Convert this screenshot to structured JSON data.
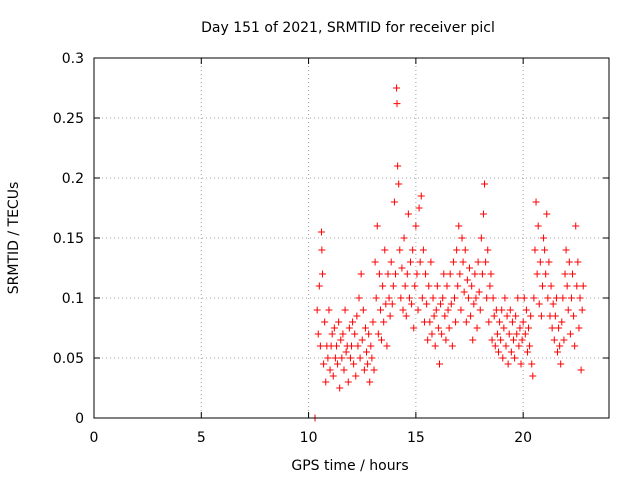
{
  "chart_data": {
    "type": "scatter",
    "title": "Day 151 of 2021, SRMTID for receiver picl",
    "xlabel": "GPS time / hours",
    "ylabel": "SRMTID / TECUs",
    "xlim": [
      0,
      24
    ],
    "ylim": [
      0,
      0.3
    ],
    "xticks": [
      0,
      5,
      10,
      15,
      20
    ],
    "xtick_labels": [
      "0",
      "5",
      "10",
      "15",
      "20"
    ],
    "yticks": [
      0,
      0.05,
      0.1,
      0.15,
      0.2,
      0.25,
      0.3
    ],
    "ytick_labels": [
      "0",
      "0.05",
      "0.1",
      "0.15",
      "0.2",
      "0.25",
      "0.3"
    ],
    "grid": true,
    "marker": "+",
    "series": [
      {
        "name": "SRMTID",
        "color": "#ff0000",
        "points": [
          [
            10.3,
            0.0
          ],
          [
            10.4,
            0.09
          ],
          [
            10.45,
            0.07
          ],
          [
            10.5,
            0.11
          ],
          [
            10.55,
            0.06
          ],
          [
            10.6,
            0.155
          ],
          [
            10.62,
            0.14
          ],
          [
            10.65,
            0.12
          ],
          [
            10.7,
            0.045
          ],
          [
            10.75,
            0.08
          ],
          [
            10.8,
            0.03
          ],
          [
            10.85,
            0.06
          ],
          [
            10.9,
            0.05
          ],
          [
            10.95,
            0.09
          ],
          [
            11.0,
            0.04
          ],
          [
            11.05,
            0.06
          ],
          [
            11.1,
            0.07
          ],
          [
            11.15,
            0.035
          ],
          [
            11.2,
            0.075
          ],
          [
            11.25,
            0.05
          ],
          [
            11.3,
            0.06
          ],
          [
            11.35,
            0.045
          ],
          [
            11.4,
            0.08
          ],
          [
            11.45,
            0.025
          ],
          [
            11.5,
            0.065
          ],
          [
            11.55,
            0.05
          ],
          [
            11.6,
            0.07
          ],
          [
            11.65,
            0.04
          ],
          [
            11.7,
            0.09
          ],
          [
            11.75,
            0.055
          ],
          [
            11.8,
            0.06
          ],
          [
            11.85,
            0.03
          ],
          [
            11.9,
            0.075
          ],
          [
            11.95,
            0.05
          ],
          [
            12.0,
            0.06
          ],
          [
            12.05,
            0.08
          ],
          [
            12.1,
            0.045
          ],
          [
            12.15,
            0.07
          ],
          [
            12.2,
            0.035
          ],
          [
            12.25,
            0.085
          ],
          [
            12.3,
            0.06
          ],
          [
            12.35,
            0.1
          ],
          [
            12.4,
            0.05
          ],
          [
            12.45,
            0.12
          ],
          [
            12.5,
            0.065
          ],
          [
            12.55,
            0.09
          ],
          [
            12.6,
            0.04
          ],
          [
            12.65,
            0.075
          ],
          [
            12.7,
            0.055
          ],
          [
            12.75,
            0.045
          ],
          [
            12.8,
            0.07
          ],
          [
            12.85,
            0.03
          ],
          [
            12.9,
            0.06
          ],
          [
            12.95,
            0.05
          ],
          [
            13.0,
            0.08
          ],
          [
            13.05,
            0.04
          ],
          [
            13.1,
            0.13
          ],
          [
            13.15,
            0.1
          ],
          [
            13.2,
            0.16
          ],
          [
            13.25,
            0.07
          ],
          [
            13.3,
            0.12
          ],
          [
            13.35,
            0.09
          ],
          [
            13.4,
            0.065
          ],
          [
            13.45,
            0.11
          ],
          [
            13.5,
            0.08
          ],
          [
            13.55,
            0.14
          ],
          [
            13.6,
            0.095
          ],
          [
            13.65,
            0.06
          ],
          [
            13.7,
            0.12
          ],
          [
            13.75,
            0.1
          ],
          [
            13.8,
            0.085
          ],
          [
            13.85,
            0.13
          ],
          [
            13.9,
            0.095
          ],
          [
            13.95,
            0.11
          ],
          [
            14.0,
            0.18
          ],
          [
            14.05,
            0.12
          ],
          [
            14.1,
            0.275
          ],
          [
            14.12,
            0.262
          ],
          [
            14.15,
            0.21
          ],
          [
            14.2,
            0.195
          ],
          [
            14.25,
            0.14
          ],
          [
            14.3,
            0.1
          ],
          [
            14.35,
            0.125
          ],
          [
            14.4,
            0.09
          ],
          [
            14.45,
            0.15
          ],
          [
            14.5,
            0.11
          ],
          [
            14.55,
            0.085
          ],
          [
            14.6,
            0.12
          ],
          [
            14.65,
            0.17
          ],
          [
            14.7,
            0.1
          ],
          [
            14.75,
            0.13
          ],
          [
            14.8,
            0.095
          ],
          [
            14.85,
            0.14
          ],
          [
            14.9,
            0.075
          ],
          [
            14.95,
            0.11
          ],
          [
            15.0,
            0.16
          ],
          [
            15.05,
            0.12
          ],
          [
            15.1,
            0.09
          ],
          [
            15.15,
            0.175
          ],
          [
            15.2,
            0.13
          ],
          [
            15.25,
            0.185
          ],
          [
            15.3,
            0.1
          ],
          [
            15.35,
            0.14
          ],
          [
            15.4,
            0.08
          ],
          [
            15.45,
            0.12
          ],
          [
            15.5,
            0.095
          ],
          [
            15.55,
            0.065
          ],
          [
            15.6,
            0.11
          ],
          [
            15.65,
            0.08
          ],
          [
            15.7,
            0.13
          ],
          [
            15.75,
            0.07
          ],
          [
            15.8,
            0.1
          ],
          [
            15.85,
            0.085
          ],
          [
            15.9,
            0.06
          ],
          [
            15.95,
            0.09
          ],
          [
            16.0,
            0.11
          ],
          [
            16.05,
            0.075
          ],
          [
            16.1,
            0.045
          ],
          [
            16.15,
            0.095
          ],
          [
            16.2,
            0.07
          ],
          [
            16.25,
            0.1
          ],
          [
            16.3,
            0.12
          ],
          [
            16.35,
            0.085
          ],
          [
            16.4,
            0.065
          ],
          [
            16.45,
            0.11
          ],
          [
            16.5,
            0.09
          ],
          [
            16.55,
            0.075
          ],
          [
            16.6,
            0.12
          ],
          [
            16.65,
            0.095
          ],
          [
            16.7,
            0.06
          ],
          [
            16.75,
            0.13
          ],
          [
            16.8,
            0.1
          ],
          [
            16.85,
            0.08
          ],
          [
            16.9,
            0.14
          ],
          [
            16.95,
            0.11
          ],
          [
            17.0,
            0.16
          ],
          [
            17.05,
            0.12
          ],
          [
            17.1,
            0.09
          ],
          [
            17.15,
            0.15
          ],
          [
            17.2,
            0.13
          ],
          [
            17.25,
            0.105
          ],
          [
            17.3,
            0.14
          ],
          [
            17.35,
            0.08
          ],
          [
            17.4,
            0.115
          ],
          [
            17.45,
            0.1
          ],
          [
            17.5,
            0.125
          ],
          [
            17.55,
            0.085
          ],
          [
            17.6,
            0.11
          ],
          [
            17.65,
            0.065
          ],
          [
            17.7,
            0.095
          ],
          [
            17.75,
            0.12
          ],
          [
            17.8,
            0.1
          ],
          [
            17.85,
            0.075
          ],
          [
            17.9,
            0.13
          ],
          [
            17.95,
            0.105
          ],
          [
            18.0,
            0.09
          ],
          [
            18.05,
            0.15
          ],
          [
            18.1,
            0.12
          ],
          [
            18.15,
            0.17
          ],
          [
            18.2,
            0.195
          ],
          [
            18.25,
            0.13
          ],
          [
            18.3,
            0.1
          ],
          [
            18.35,
            0.14
          ],
          [
            18.4,
            0.08
          ],
          [
            18.45,
            0.11
          ],
          [
            18.5,
            0.12
          ],
          [
            18.55,
            0.065
          ],
          [
            18.6,
            0.1
          ],
          [
            18.65,
            0.085
          ],
          [
            18.7,
            0.06
          ],
          [
            18.75,
            0.09
          ],
          [
            18.8,
            0.07
          ],
          [
            18.85,
            0.055
          ],
          [
            18.9,
            0.08
          ],
          [
            18.95,
            0.065
          ],
          [
            19.0,
            0.09
          ],
          [
            19.05,
            0.05
          ],
          [
            19.1,
            0.075
          ],
          [
            19.15,
            0.1
          ],
          [
            19.2,
            0.06
          ],
          [
            19.25,
            0.085
          ],
          [
            19.3,
            0.045
          ],
          [
            19.35,
            0.07
          ],
          [
            19.4,
            0.09
          ],
          [
            19.45,
            0.055
          ],
          [
            19.5,
            0.08
          ],
          [
            19.55,
            0.065
          ],
          [
            19.6,
            0.05
          ],
          [
            19.65,
            0.085
          ],
          [
            19.7,
            0.07
          ],
          [
            19.75,
            0.1
          ],
          [
            19.8,
            0.06
          ],
          [
            19.85,
            0.075
          ],
          [
            19.9,
            0.045
          ],
          [
            19.95,
            0.065
          ],
          [
            20.0,
            0.08
          ],
          [
            20.05,
            0.1
          ],
          [
            20.1,
            0.07
          ],
          [
            20.15,
            0.09
          ],
          [
            20.2,
            0.055
          ],
          [
            20.25,
            0.075
          ],
          [
            20.3,
            0.06
          ],
          [
            20.35,
            0.085
          ],
          [
            20.4,
            0.045
          ],
          [
            20.45,
            0.035
          ],
          [
            20.5,
            0.1
          ],
          [
            20.55,
            0.14
          ],
          [
            20.6,
            0.18
          ],
          [
            20.65,
            0.12
          ],
          [
            20.7,
            0.16
          ],
          [
            20.75,
            0.095
          ],
          [
            20.8,
            0.13
          ],
          [
            20.85,
            0.085
          ],
          [
            20.9,
            0.11
          ],
          [
            20.95,
            0.15
          ],
          [
            21.0,
            0.14
          ],
          [
            21.05,
            0.12
          ],
          [
            21.1,
            0.17
          ],
          [
            21.15,
            0.1
          ],
          [
            21.2,
            0.13
          ],
          [
            21.25,
            0.085
          ],
          [
            21.3,
            0.11
          ],
          [
            21.35,
            0.075
          ],
          [
            21.4,
            0.095
          ],
          [
            21.45,
            0.065
          ],
          [
            21.5,
            0.085
          ],
          [
            21.55,
            0.1
          ],
          [
            21.6,
            0.055
          ],
          [
            21.65,
            0.075
          ],
          [
            21.7,
            0.06
          ],
          [
            21.75,
            0.045
          ],
          [
            21.8,
            0.08
          ],
          [
            21.85,
            0.1
          ],
          [
            21.9,
            0.065
          ],
          [
            21.95,
            0.12
          ],
          [
            22.0,
            0.14
          ],
          [
            22.05,
            0.11
          ],
          [
            22.1,
            0.09
          ],
          [
            22.15,
            0.13
          ],
          [
            22.2,
            0.07
          ],
          [
            22.25,
            0.1
          ],
          [
            22.3,
            0.12
          ],
          [
            22.35,
            0.085
          ],
          [
            22.4,
            0.06
          ],
          [
            22.45,
            0.16
          ],
          [
            22.5,
            0.11
          ],
          [
            22.55,
            0.13
          ],
          [
            22.6,
            0.075
          ],
          [
            22.65,
            0.1
          ],
          [
            22.7,
            0.04
          ],
          [
            22.75,
            0.09
          ],
          [
            22.8,
            0.11
          ]
        ]
      }
    ]
  }
}
